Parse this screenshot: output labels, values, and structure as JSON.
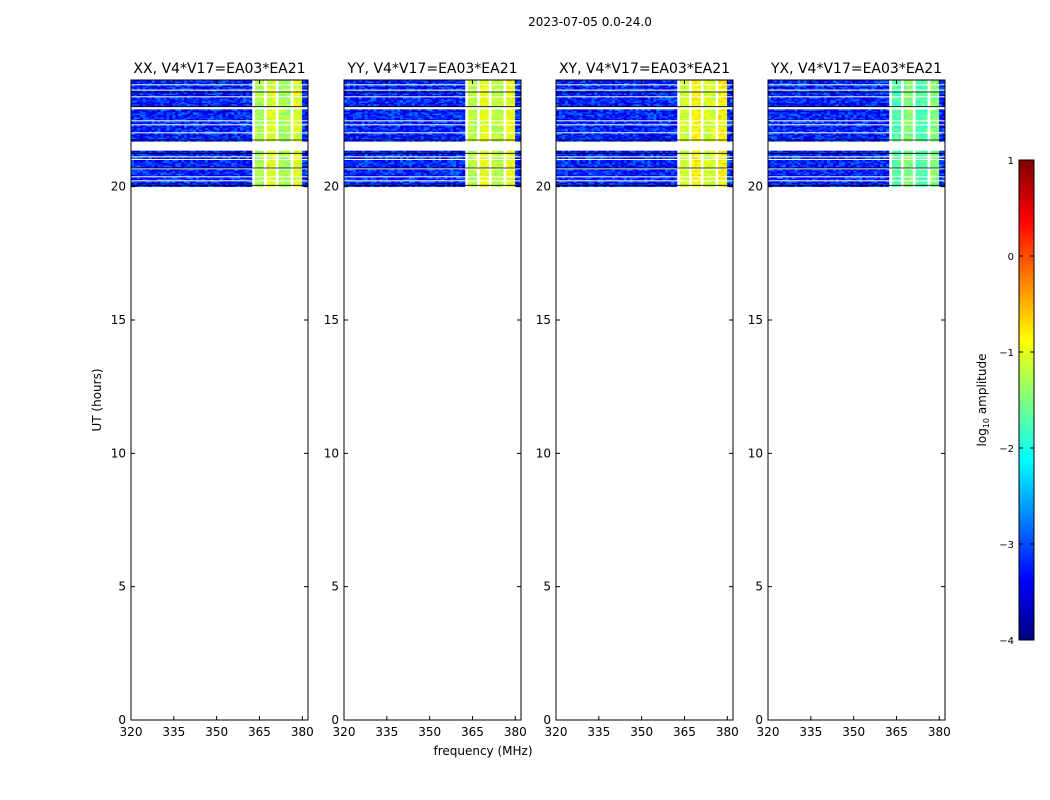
{
  "figure": {
    "suptitle": "2023-07-05 0.0-24.0",
    "xlabel": "frequency (MHz)",
    "ylabel": "UT (hours)"
  },
  "chart_data": [
    {
      "type": "heatmap",
      "title": "XX, V4*V17=EA03*EA21",
      "xlim": [
        320,
        382
      ],
      "ylim": [
        0,
        24
      ],
      "xticks": [
        320,
        335,
        350,
        365,
        380
      ],
      "yticks": [
        0,
        5,
        10,
        15,
        20
      ],
      "data_rows_hours": [
        20.0,
        24.0
      ],
      "gap_hours": [
        21.35,
        21.65
      ],
      "bright_band_mhz": [
        362,
        380
      ],
      "bright_level": -1.2,
      "background_level": -3.2
    },
    {
      "type": "heatmap",
      "title": "YY, V4*V17=EA03*EA21",
      "xlim": [
        320,
        382
      ],
      "ylim": [
        0,
        24
      ],
      "xticks": [
        320,
        335,
        350,
        365,
        380
      ],
      "yticks": [
        0,
        5,
        10,
        15,
        20
      ],
      "data_rows_hours": [
        20.0,
        24.0
      ],
      "gap_hours": [
        21.35,
        21.65
      ],
      "bright_band_mhz": [
        362,
        380
      ],
      "bright_level": -1.1,
      "background_level": -3.2
    },
    {
      "type": "heatmap",
      "title": "XY, V4*V17=EA03*EA21",
      "xlim": [
        320,
        382
      ],
      "ylim": [
        0,
        24
      ],
      "xticks": [
        320,
        335,
        350,
        365,
        380
      ],
      "yticks": [
        0,
        5,
        10,
        15,
        20
      ],
      "data_rows_hours": [
        20.0,
        24.0
      ],
      "gap_hours": [
        21.35,
        21.65
      ],
      "bright_band_mhz": [
        362,
        380
      ],
      "bright_level": -1.0,
      "background_level": -3.2
    },
    {
      "type": "heatmap",
      "title": "YX, V4*V17=EA03*EA21",
      "xlim": [
        320,
        382
      ],
      "ylim": [
        0,
        24
      ],
      "xticks": [
        320,
        335,
        350,
        365,
        380
      ],
      "yticks": [
        0,
        5,
        10,
        15,
        20
      ],
      "data_rows_hours": [
        20.0,
        24.0
      ],
      "gap_hours": [
        21.35,
        21.65
      ],
      "bright_band_mhz": [
        362,
        380
      ],
      "bright_level": -1.6,
      "background_level": -3.2
    }
  ],
  "colorbar": {
    "label": "log10 amplitude",
    "range": [
      -4,
      1
    ],
    "ticks": [
      -4,
      -3,
      -2,
      -1,
      0,
      1
    ],
    "tick_labels": [
      "−4",
      "−3",
      "−2",
      "−1",
      "0",
      "1"
    ],
    "colormap": "jet"
  }
}
